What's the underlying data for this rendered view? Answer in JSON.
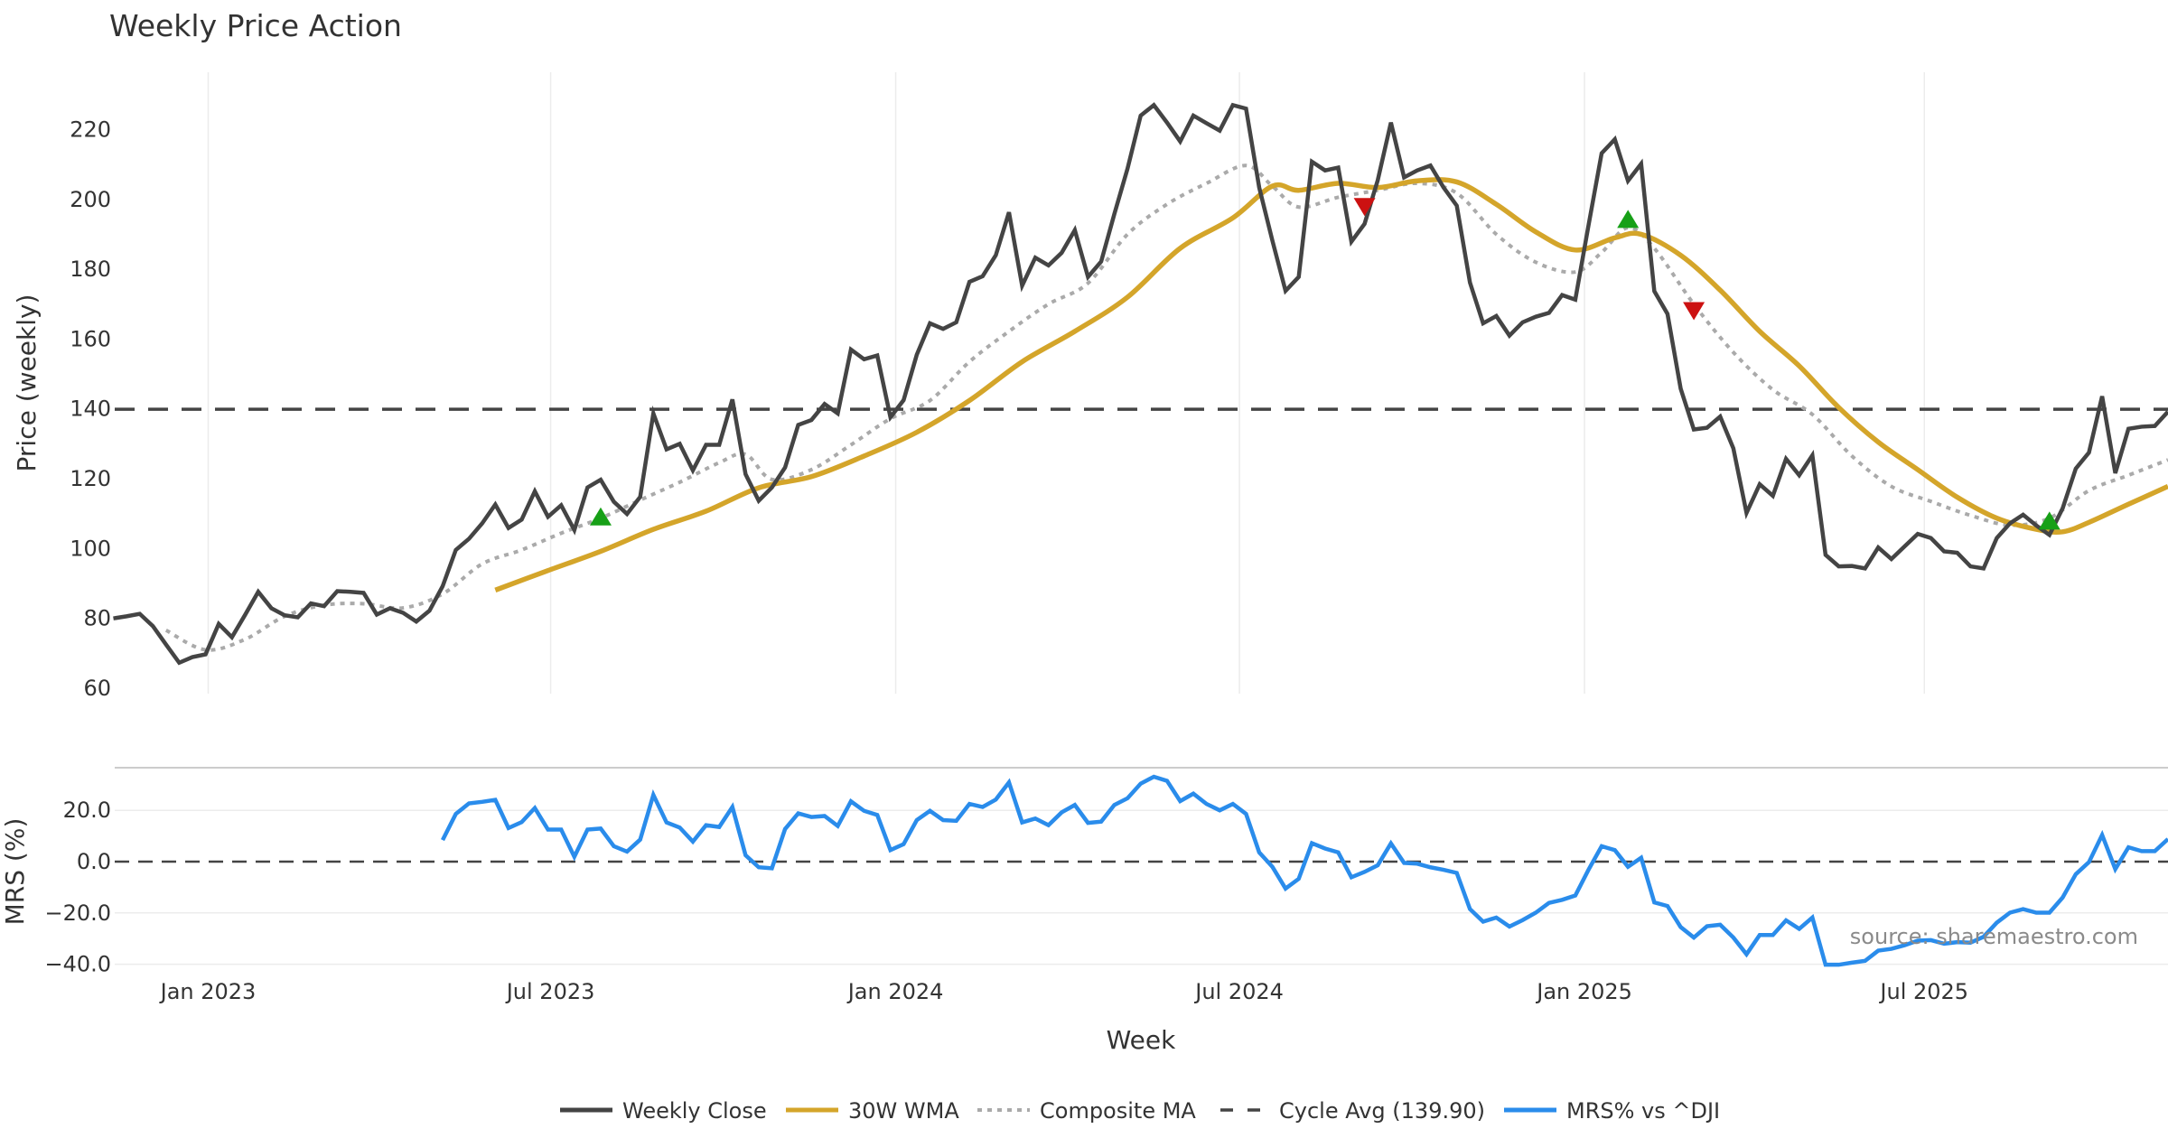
{
  "chart_data": [
    {
      "type": "line",
      "title": "Weekly Price Action",
      "ylabel": "Price (weekly)",
      "xlabel": "Week",
      "ylim": [
        60,
        230
      ],
      "yticks": [
        60,
        80,
        100,
        120,
        140,
        160,
        180,
        200,
        220
      ],
      "x_unit": "week index",
      "xticks": [
        {
          "label": "Jan 2023",
          "week": 7.2
        },
        {
          "label": "Jul 2023",
          "week": 33.2
        },
        {
          "label": "Jan 2024",
          "week": 59.4
        },
        {
          "label": "Jul 2024",
          "week": 85.5
        },
        {
          "label": "Jan 2025",
          "week": 111.7
        },
        {
          "label": "Jul 2025",
          "week": 137.5
        }
      ],
      "grid": "vertical",
      "weeks": 157,
      "series": [
        {
          "name": "Weekly Close",
          "color": "#444444",
          "start_week": 0,
          "values": [
            80.0,
            80.6,
            81.3,
            77.8,
            72.5,
            67.3,
            68.9,
            69.7,
            78.4,
            74.6,
            81.0,
            87.6,
            82.9,
            80.9,
            80.3,
            84.3,
            83.5,
            87.8,
            87.6,
            87.3,
            81.1,
            82.9,
            81.6,
            79.1,
            82.2,
            89.2,
            99.6,
            102.8,
            107.2,
            112.6,
            105.9,
            108.3,
            116.4,
            109.1,
            112.4,
            105.3,
            117.5,
            119.7,
            113.4,
            109.9,
            114.8,
            138.7,
            128.4,
            130.0,
            122.4,
            129.7,
            129.7,
            142.7,
            121.3,
            113.7,
            117.5,
            123.2,
            135.4,
            136.8,
            141.4,
            138.7,
            157.0,
            154.2,
            155.3,
            137.6,
            142.5,
            155.5,
            164.5,
            162.9,
            164.8,
            176.4,
            178.0,
            184.0,
            196.3,
            175.3,
            183.3,
            181.1,
            184.7,
            191.2,
            177.8,
            182.2,
            195.8,
            208.8,
            224.0,
            227.0,
            222.0,
            216.6,
            224.0,
            221.8,
            219.7,
            227.0,
            226.0,
            203.4,
            188.2,
            173.8,
            177.8,
            210.8,
            208.3,
            209.1,
            187.9,
            193.0,
            205.5,
            222.0,
            206.3,
            208.3,
            209.7,
            203.4,
            198.2,
            176.2,
            164.5,
            166.6,
            161.0,
            164.8,
            166.4,
            167.5,
            172.6,
            171.3,
            192.5,
            213.2,
            217.2,
            205.3,
            210.2,
            173.7,
            167.2,
            145.8,
            134.1,
            134.6,
            137.8,
            128.7,
            110.2,
            118.4,
            115.1,
            125.7,
            121.0,
            126.7,
            98.2,
            94.9,
            95.0,
            94.3,
            100.3,
            97.0,
            100.6,
            104.2,
            103.0,
            99.2,
            98.8,
            94.9,
            94.3,
            103.0,
            107.2,
            109.7,
            106.6,
            103.9,
            111.5,
            122.9,
            127.5,
            143.6,
            121.6,
            134.3,
            134.9,
            135.1,
            139.2
          ]
        },
        {
          "name": "30W WMA",
          "color": "#D4A52A",
          "points": [
            [
              29,
              88.1
            ],
            [
              33,
              93.7
            ],
            [
              37,
              99.2
            ],
            [
              41,
              105.5
            ],
            [
              45,
              110.7
            ],
            [
              49,
              117.4
            ],
            [
              53,
              120.6
            ],
            [
              57,
              126.5
            ],
            [
              61,
              133.3
            ],
            [
              65,
              142.4
            ],
            [
              69,
              153.5
            ],
            [
              73,
              162.2
            ],
            [
              77,
              172.0
            ],
            [
              81,
              186.0
            ],
            [
              85,
              194.7
            ],
            [
              88,
              203.8
            ],
            [
              90,
              202.6
            ],
            [
              93,
              204.6
            ],
            [
              96,
              203.4
            ],
            [
              99,
              205.3
            ],
            [
              102,
              205.0
            ],
            [
              105,
              198.6
            ],
            [
              108,
              190.7
            ],
            [
              111,
              185.5
            ],
            [
              114,
              189.0
            ],
            [
              116,
              190.0
            ],
            [
              119,
              184.0
            ],
            [
              122,
              174.0
            ],
            [
              125,
              162.2
            ],
            [
              128,
              152.3
            ],
            [
              131,
              140.4
            ],
            [
              134,
              130.5
            ],
            [
              137,
              122.6
            ],
            [
              140,
              114.7
            ],
            [
              143,
              108.7
            ],
            [
              146,
              105.5
            ],
            [
              148,
              104.8
            ],
            [
              150,
              107.5
            ],
            [
              153,
              112.7
            ],
            [
              156,
              117.8
            ]
          ]
        },
        {
          "name": "Composite MA",
          "color": "#AAAAAA",
          "points": [
            [
              4,
              76.6
            ],
            [
              7,
              71.0
            ],
            [
              10,
              74.0
            ],
            [
              13,
              80.6
            ],
            [
              16,
              83.8
            ],
            [
              19,
              84.2
            ],
            [
              22,
              83.0
            ],
            [
              25,
              87.0
            ],
            [
              28,
              95.6
            ],
            [
              31,
              99.6
            ],
            [
              34,
              104.4
            ],
            [
              37,
              108.7
            ],
            [
              40,
              113.9
            ],
            [
              43,
              119.0
            ],
            [
              46,
              124.6
            ],
            [
              48,
              127.0
            ],
            [
              50,
              119.8
            ],
            [
              53,
              122.6
            ],
            [
              56,
              129.7
            ],
            [
              59,
              137.2
            ],
            [
              62,
              142.4
            ],
            [
              65,
              153.5
            ],
            [
              68,
              162.2
            ],
            [
              71,
              170.0
            ],
            [
              74,
              176.0
            ],
            [
              77,
              190.0
            ],
            [
              80,
              198.6
            ],
            [
              83,
              204.6
            ],
            [
              86,
              209.7
            ],
            [
              88,
              203.8
            ],
            [
              90,
              197.8
            ],
            [
              93,
              200.6
            ],
            [
              96,
              202.6
            ],
            [
              99,
              204.6
            ],
            [
              102,
              201.8
            ],
            [
              105,
              190.0
            ],
            [
              108,
              182.0
            ],
            [
              111,
              179.2
            ],
            [
              113,
              184.8
            ],
            [
              115,
              191.9
            ],
            [
              117,
              186.0
            ],
            [
              120,
              170.0
            ],
            [
              123,
              156.2
            ],
            [
              126,
              145.5
            ],
            [
              129,
              138.4
            ],
            [
              132,
              126.5
            ],
            [
              135,
              117.8
            ],
            [
              138,
              113.5
            ],
            [
              141,
              109.5
            ],
            [
              144,
              106.7
            ],
            [
              147,
              108.7
            ],
            [
              150,
              116.6
            ],
            [
              153,
              121.0
            ],
            [
              156,
              125.4
            ]
          ]
        },
        {
          "name": "Cycle Avg (139.90)",
          "color": "#444444",
          "value": 139.9
        }
      ],
      "signals": [
        {
          "type": "buy",
          "week": 37,
          "value": 108.7,
          "color": "#17A017"
        },
        {
          "type": "sell",
          "week": 95,
          "value": 197.8,
          "color": "#CC1111"
        },
        {
          "type": "buy",
          "week": 115,
          "value": 193.9,
          "color": "#17A017"
        },
        {
          "type": "sell",
          "week": 120,
          "value": 168.0,
          "color": "#CC1111"
        },
        {
          "type": "buy",
          "week": 147,
          "value": 107.5,
          "color": "#17A017"
        }
      ]
    },
    {
      "type": "line",
      "ylabel": "MRS (%)",
      "ylim": [
        -41,
        37
      ],
      "yticks": [
        20,
        0,
        -20,
        -40
      ],
      "ytick_labels": [
        "20.0",
        "0.0",
        "−20.0",
        "−40.0"
      ],
      "series": [
        {
          "name": "MRS% vs ^DJI",
          "color": "#2A8CEB",
          "start_week": 25,
          "values": [
            8.4,
            18.6,
            22.7,
            23.3,
            24.1,
            13.1,
            15.4,
            20.9,
            12.5,
            12.5,
            1.9,
            12.5,
            12.9,
            6.0,
            3.9,
            8.6,
            26.0,
            15.3,
            13.3,
            7.8,
            14.2,
            13.5,
            21.3,
            2.5,
            -2.2,
            -2.6,
            12.7,
            18.8,
            17.4,
            17.8,
            13.9,
            23.5,
            19.8,
            18.2,
            4.5,
            6.8,
            16.2,
            19.8,
            16.2,
            15.9,
            22.5,
            21.3,
            24.2,
            30.9,
            15.3,
            16.8,
            14.2,
            19.2,
            22.1,
            15.1,
            15.6,
            22.1,
            24.7,
            30.4,
            33.1,
            31.5,
            23.6,
            26.5,
            22.5,
            20.0,
            22.5,
            18.6,
            3.6,
            -2.0,
            -10.5,
            -6.7,
            7.2,
            5.1,
            3.6,
            -6.1,
            -4.0,
            -1.4,
            7.1,
            -0.5,
            -0.8,
            -2.2,
            -3.2,
            -4.4,
            -18.5,
            -23.4,
            -21.8,
            -25.3,
            -22.8,
            -19.9,
            -16.1,
            -14.9,
            -13.2,
            -3.2,
            6.0,
            4.5,
            -2.0,
            1.5,
            -15.9,
            -17.3,
            -25.5,
            -29.6,
            -25.2,
            -24.6,
            -29.6,
            -36.1,
            -28.6,
            -28.6,
            -22.9,
            -26.2,
            -21.8,
            -40.2,
            -40.2,
            -39.4,
            -38.7,
            -34.7,
            -34.0,
            -32.6,
            -30.8,
            -30.6,
            -32.0,
            -31.4,
            -31.6,
            -29.3,
            -23.8,
            -19.9,
            -18.5,
            -19.9,
            -19.9,
            -14.0,
            -4.9,
            -0.2,
            10.4,
            -2.9,
            5.6,
            4.1,
            4.1,
            8.8
          ]
        }
      ],
      "annotation": "source: sharemaestro.com"
    }
  ],
  "legend": {
    "position": "bottom-center",
    "items": [
      {
        "label": "Weekly Close",
        "color": "#444444",
        "style": "solid"
      },
      {
        "label": "30W WMA",
        "color": "#D4A52A",
        "style": "solid"
      },
      {
        "label": "Composite MA",
        "color": "#AAAAAA",
        "style": "dotted"
      },
      {
        "label": "Cycle Avg (139.90)",
        "color": "#444444",
        "style": "dashed"
      },
      {
        "label": "MRS% vs ^DJI",
        "color": "#2A8CEB",
        "style": "solid"
      }
    ]
  }
}
